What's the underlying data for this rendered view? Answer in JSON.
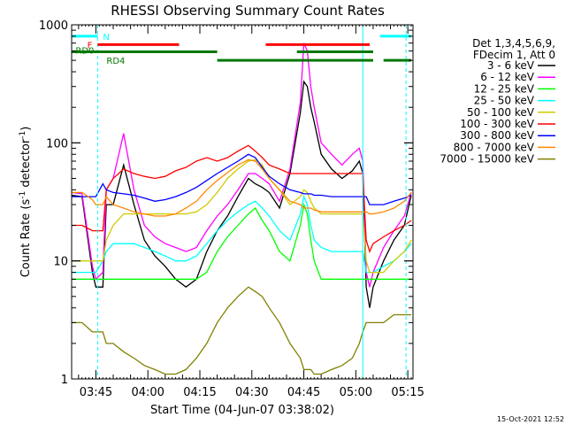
{
  "chart_data": {
    "type": "line",
    "title": "RHESSI Observing Summary Count Rates",
    "xlabel": "Start Time (04-Jun-07 03:38:02)",
    "ylabel_main": "Count Rate (s",
    "ylabel_sup1": "-1",
    "ylabel_mid": " detector",
    "ylabel_sup2": "-1",
    "ylabel_end": ")",
    "y_scale": "log",
    "ylim": [
      1,
      1000
    ],
    "xlim": [
      "03:38",
      "05:16"
    ],
    "x_ticks": [
      "03:45",
      "04:00",
      "04:15",
      "04:30",
      "04:45",
      "05:00",
      "05:15"
    ],
    "x_tick_minutes": [
      45,
      60,
      75,
      90,
      105,
      120,
      135
    ],
    "y_ticks": [
      {
        "label": "1000",
        "value": 1000
      },
      {
        "label": "100",
        "value": 100
      },
      {
        "label": "10",
        "value": 10
      },
      {
        "label": "1",
        "value": 1
      }
    ],
    "legend_header": [
      "Det 1,3,4,5,6,9,",
      "FDecim 1, Att 0"
    ],
    "legend_position": "right",
    "timestamp": "15-Oct-2021 12:52",
    "x_minutes": [
      38,
      41,
      44,
      45,
      47,
      48,
      50,
      53,
      56,
      59,
      62,
      65,
      68,
      71,
      74,
      77,
      80,
      83,
      86,
      89,
      91,
      93,
      95,
      98,
      101,
      104,
      105,
      106,
      107,
      108,
      110,
      113,
      116,
      119,
      121,
      122,
      123,
      124,
      125,
      128,
      131,
      134,
      136
    ],
    "series": [
      {
        "name": "3 - 6 keV",
        "color": "#000000",
        "values": [
          36,
          35,
          8,
          6,
          6,
          30,
          30,
          65,
          30,
          15,
          11,
          9,
          7,
          6,
          7,
          12,
          18,
          24,
          35,
          50,
          45,
          42,
          38,
          28,
          55,
          180,
          330,
          300,
          200,
          150,
          80,
          60,
          50,
          58,
          70,
          55,
          6,
          4,
          6,
          10,
          15,
          20,
          36
        ]
      },
      {
        "name": "6 - 12 keV",
        "color": "#ff00ff",
        "values": [
          38,
          37,
          9,
          7,
          8,
          40,
          50,
          120,
          40,
          20,
          16,
          14,
          13,
          12,
          13,
          18,
          24,
          30,
          40,
          55,
          55,
          50,
          45,
          32,
          60,
          220,
          700,
          600,
          300,
          200,
          100,
          80,
          65,
          80,
          90,
          70,
          8,
          6,
          8,
          13,
          18,
          24,
          38
        ]
      },
      {
        "name": "12 - 25 keV",
        "color": "#00ff00",
        "values": [
          7,
          7,
          7,
          7,
          7,
          7,
          7,
          7,
          7,
          7,
          7,
          7,
          7,
          7,
          7,
          8,
          12,
          16,
          20,
          25,
          28,
          22,
          18,
          12,
          10,
          20,
          30,
          25,
          15,
          10,
          7,
          7,
          7,
          7,
          7,
          7,
          7,
          7,
          7,
          7,
          7,
          7,
          7
        ]
      },
      {
        "name": "25 - 50 keV",
        "color": "#00ffff",
        "values": [
          8,
          8,
          8,
          8,
          10,
          12,
          14,
          14,
          14,
          13,
          12,
          11,
          10,
          10,
          11,
          14,
          18,
          22,
          26,
          30,
          32,
          28,
          24,
          18,
          15,
          25,
          35,
          30,
          20,
          15,
          13,
          12,
          12,
          12,
          12,
          12,
          8,
          8,
          8,
          9,
          10,
          12,
          14
        ]
      },
      {
        "name": "50 - 100 keV",
        "color": "#cccc00",
        "values": [
          10,
          10,
          10,
          10,
          10,
          15,
          20,
          25,
          25,
          25,
          25,
          25,
          25,
          25,
          26,
          30,
          38,
          50,
          60,
          70,
          72,
          65,
          50,
          40,
          30,
          35,
          40,
          38,
          32,
          28,
          25,
          25,
          25,
          25,
          25,
          25,
          10,
          8,
          8,
          8,
          10,
          12,
          15
        ]
      },
      {
        "name": "100 - 300 keV",
        "color": "#ff0000",
        "values": [
          20,
          20,
          18,
          18,
          18,
          40,
          50,
          60,
          55,
          52,
          50,
          52,
          58,
          62,
          70,
          75,
          70,
          75,
          85,
          95,
          85,
          75,
          65,
          60,
          55,
          55,
          55,
          55,
          55,
          55,
          55,
          55,
          55,
          55,
          55,
          55,
          15,
          12,
          14,
          16,
          18,
          20,
          22
        ]
      },
      {
        "name": "300 - 800 keV",
        "color": "#0000ff",
        "values": [
          35,
          35,
          35,
          35,
          45,
          40,
          38,
          37,
          36,
          34,
          32,
          33,
          35,
          38,
          42,
          48,
          55,
          62,
          70,
          80,
          75,
          62,
          52,
          45,
          40,
          38,
          37,
          37,
          37,
          36,
          36,
          35,
          35,
          35,
          35,
          35,
          35,
          30,
          30,
          30,
          32,
          34,
          36
        ]
      },
      {
        "name": "800 - 7000 keV",
        "color": "#ff8800",
        "values": [
          38,
          38,
          33,
          30,
          30,
          35,
          30,
          28,
          26,
          25,
          24,
          24,
          25,
          28,
          32,
          40,
          48,
          56,
          65,
          72,
          70,
          60,
          50,
          40,
          32,
          30,
          28,
          28,
          28,
          27,
          26,
          26,
          26,
          26,
          26,
          26,
          26,
          25,
          25,
          26,
          28,
          32,
          38
        ]
      },
      {
        "name": "7000 - 15000 keV",
        "color": "#808000",
        "values": [
          3,
          3,
          2.5,
          2.5,
          2.5,
          2,
          2,
          1.7,
          1.5,
          1.3,
          1.2,
          1.1,
          1.1,
          1.2,
          1.5,
          2,
          3,
          4,
          5,
          6,
          5.5,
          5,
          4,
          3,
          2,
          1.5,
          1.2,
          1.2,
          1.2,
          1.1,
          1.1,
          1.2,
          1.3,
          1.5,
          2,
          2.5,
          3,
          3,
          3,
          3,
          3.5,
          3.5,
          3.5
        ]
      }
    ],
    "status_bars": {
      "N": {
        "label": "N",
        "color": "#00ffff",
        "segments": [
          [
            38,
            45.5
          ],
          [
            127,
            136
          ]
        ],
        "level": 800
      },
      "F": {
        "label": "F",
        "color": "#ff0000",
        "segments": [
          [
            45.5,
            69
          ],
          [
            94,
            124
          ]
        ],
        "level": 680
      },
      "RD0": {
        "label": "RD0",
        "color": "#007700",
        "segments": [
          [
            38,
            80
          ],
          [
            103,
            125
          ]
        ],
        "level": 590
      },
      "RD4": {
        "label": "RD4",
        "color": "#007700",
        "segments": [
          [
            80,
            125
          ],
          [
            128,
            136
          ]
        ],
        "level": 500
      }
    },
    "vertical_markers": [
      {
        "minute": 45.5,
        "color": "#00ffff",
        "style": "dashed"
      },
      {
        "minute": 122,
        "color": "#00ffff",
        "style": "solid"
      },
      {
        "minute": 134.5,
        "color": "#00ffff",
        "style": "dashed"
      }
    ]
  }
}
